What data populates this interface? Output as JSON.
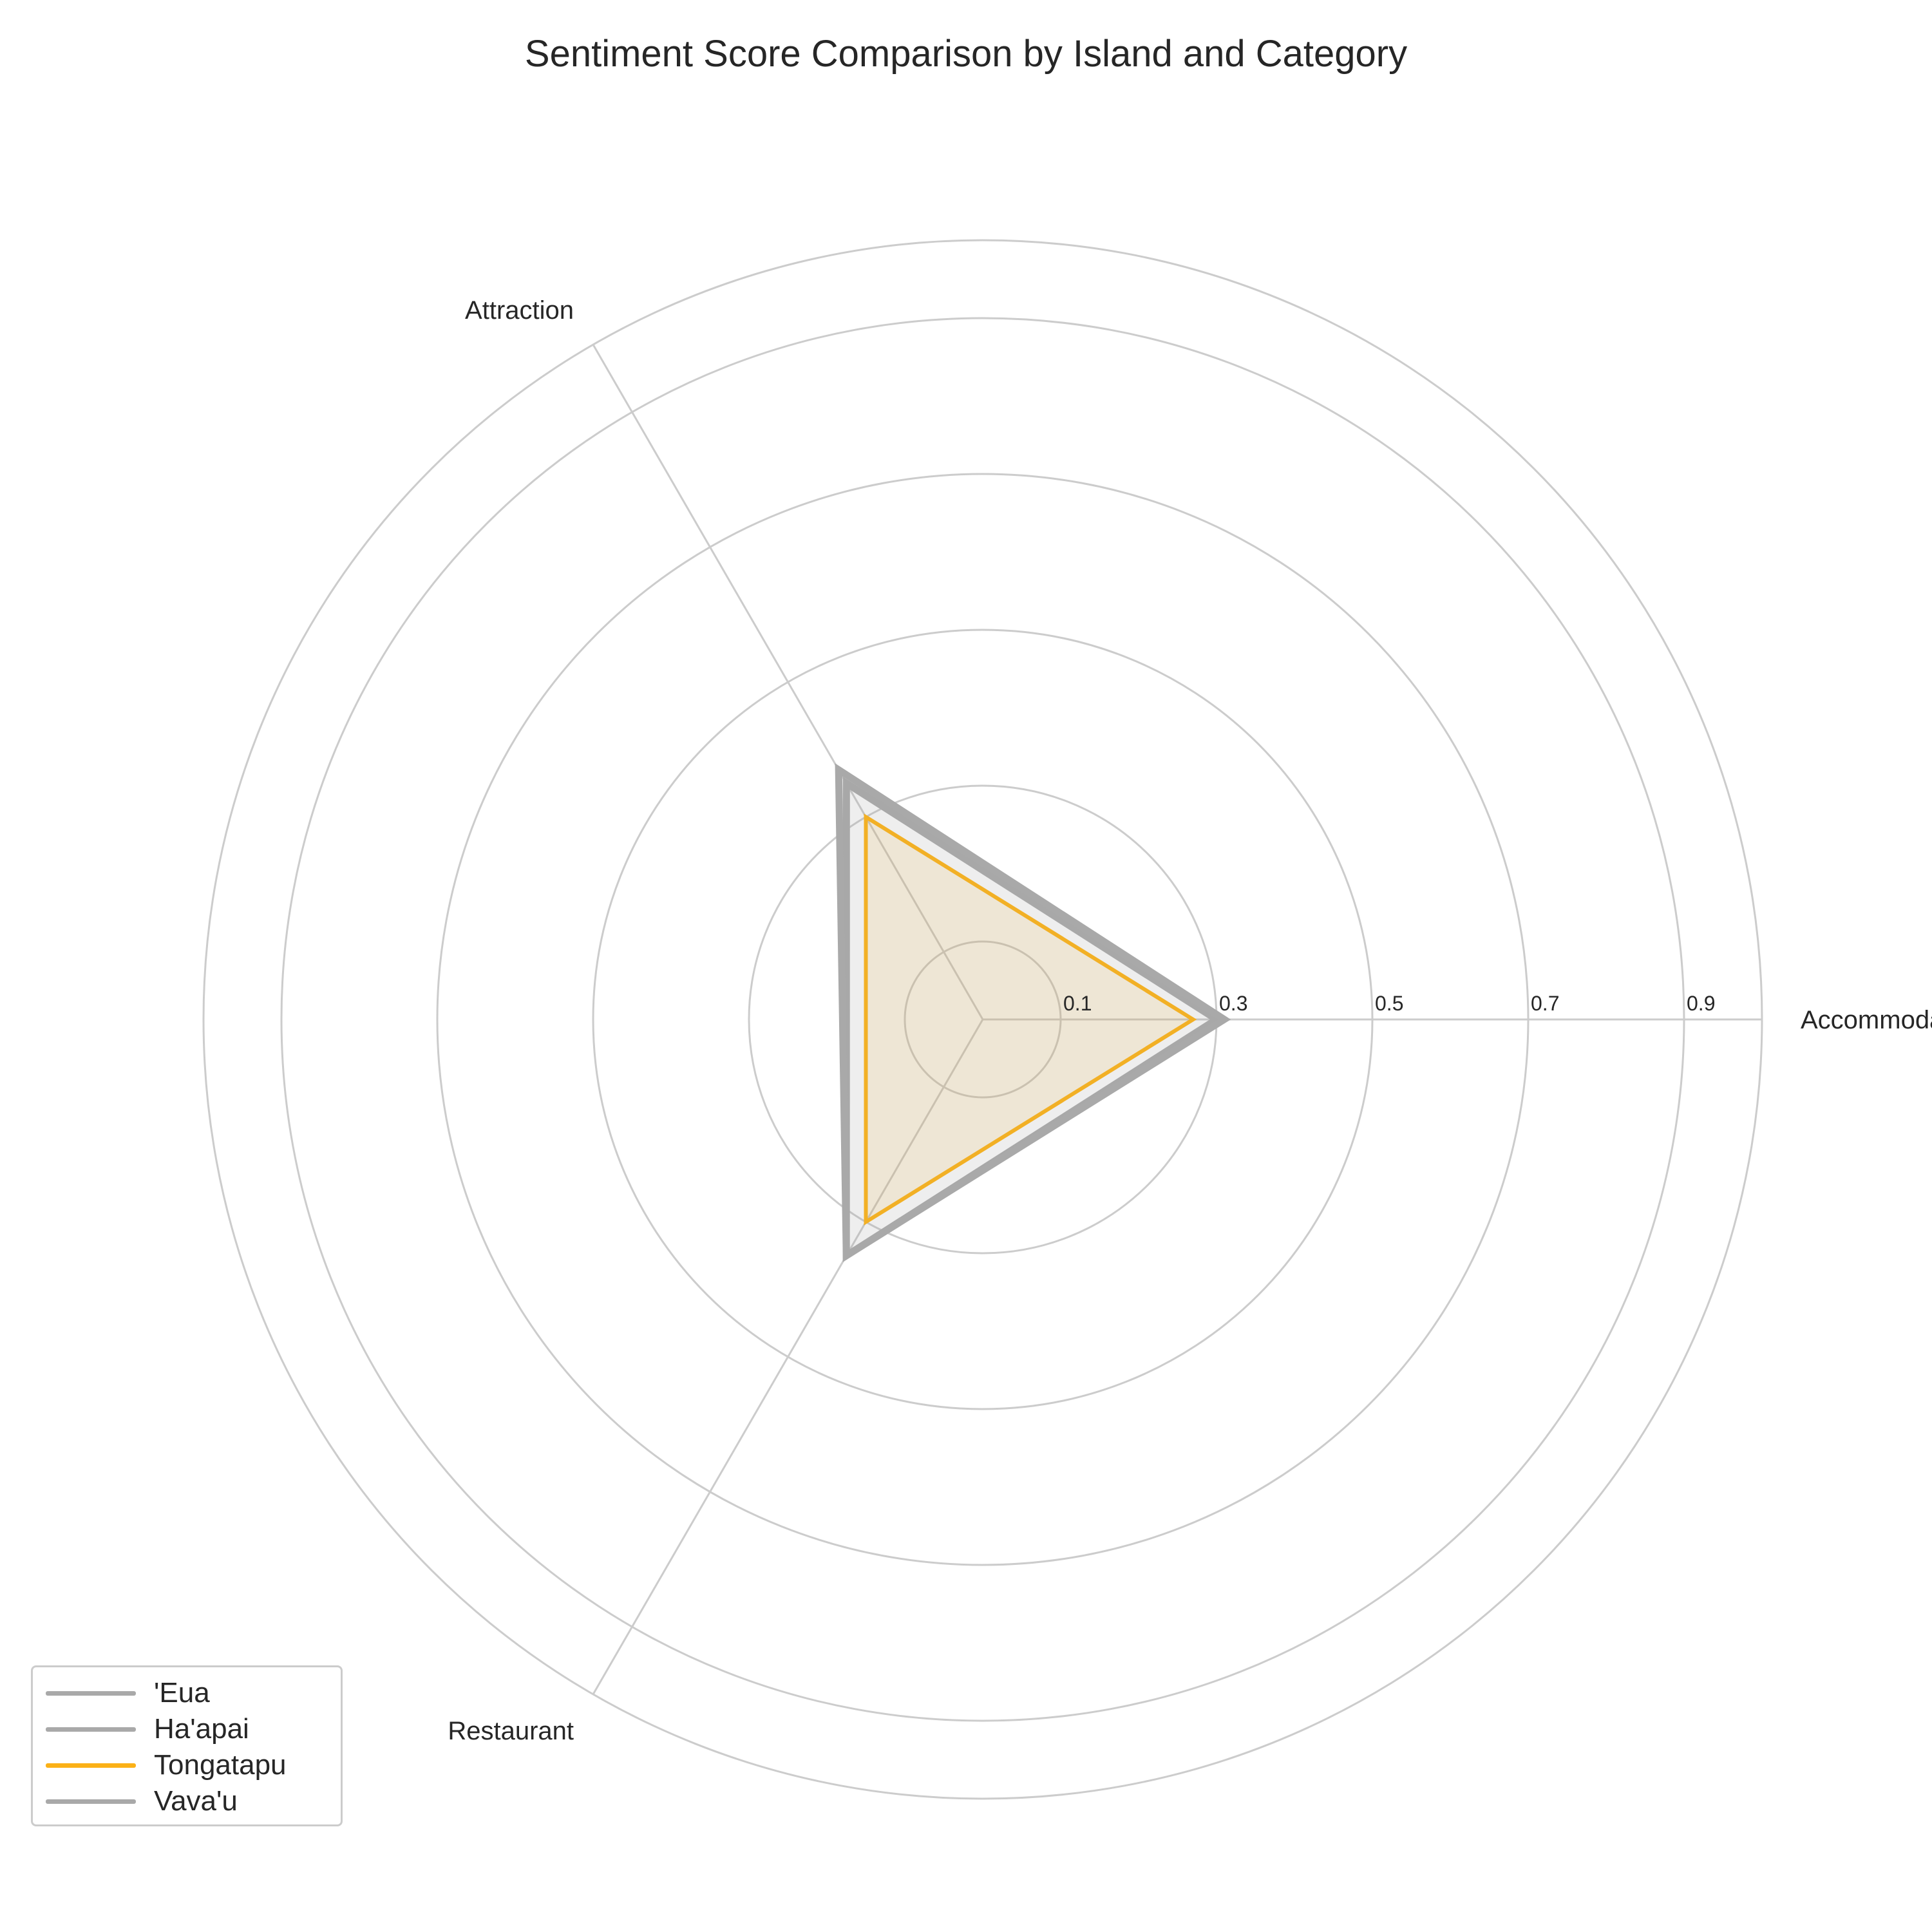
{
  "chart_data": {
    "type": "radar",
    "title": "Sentiment Score Comparison by Island and Category",
    "categories": [
      "Accommodation",
      "Attraction",
      "Restaurant"
    ],
    "r_ticks": [
      "0.1",
      "0.3",
      "0.5",
      "0.7",
      "0.9"
    ],
    "r_tick_values": [
      0.1,
      0.3,
      0.5,
      0.7,
      0.9
    ],
    "rlim": [
      0,
      1.0
    ],
    "grid": true,
    "legend_position": "lower-left",
    "series": [
      {
        "name": "'Eua",
        "values": [
          0.0,
          0.0,
          0.0
        ],
        "color": "#a9a9a9"
      },
      {
        "name": "Ha'apai",
        "values": [
          0.3,
          0.35,
          0.35
        ],
        "color": "#a9a9a9"
      },
      {
        "name": "Tongatapu",
        "values": [
          0.27,
          0.3,
          0.3
        ],
        "color": "#fbb117"
      },
      {
        "name": "Vava'u",
        "values": [
          0.31,
          0.37,
          0.35
        ],
        "color": "#a9a9a9"
      }
    ]
  }
}
